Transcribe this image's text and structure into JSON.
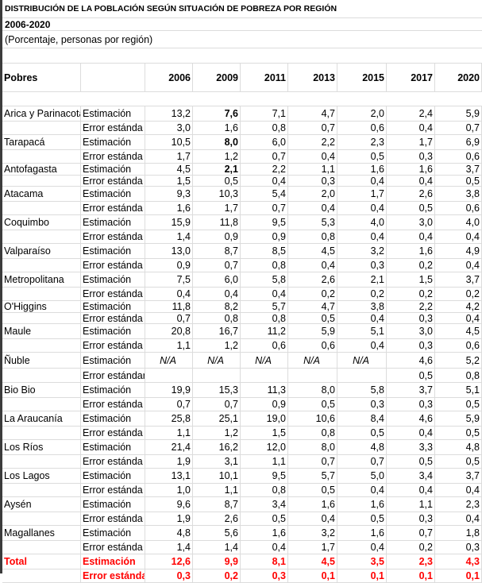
{
  "title": "DISTRIBUCIÓN DE LA POBLACIÓN SEGÚN SITUACIÓN DE POBREZA POR REGIÓN",
  "period": "2006-2020",
  "subtitle": "(Porcentaje, personas por región)",
  "header": {
    "label": "Pobres",
    "years": [
      "2006",
      "2009",
      "2011",
      "2013",
      "2015",
      "2017",
      "2020"
    ]
  },
  "estimate_label": "Estimación",
  "error_label": "Error estánda",
  "regions": [
    {
      "name": "Arica y Parinacota",
      "est": [
        "13,2",
        "7,6",
        "7,1",
        "4,7",
        "2,0",
        "2,4",
        "5,9"
      ],
      "err": [
        "3,0",
        "1,6",
        "0,8",
        "0,7",
        "0,6",
        "0,4",
        "0,7"
      ],
      "bold_cols": [
        1
      ]
    },
    {
      "name": "Tarapacá",
      "est": [
        "10,5",
        "8,0",
        "6,0",
        "2,2",
        "2,3",
        "1,7",
        "6,9"
      ],
      "err": [
        "1,7",
        "1,2",
        "0,7",
        "0,4",
        "0,5",
        "0,3",
        "0,6"
      ],
      "bold_cols": [
        1
      ]
    },
    {
      "name": "Antofagasta",
      "est": [
        "4,5",
        "2,1",
        "2,2",
        "1,1",
        "1,6",
        "1,6",
        "3,7"
      ],
      "err": [
        "1,5",
        "0,5",
        "0,4",
        "0,3",
        "0,4",
        "0,4",
        "0,5"
      ],
      "bold_cols": [
        1
      ],
      "tight": true
    },
    {
      "name": "Atacama",
      "est": [
        "9,3",
        "10,3",
        "5,4",
        "2,0",
        "1,7",
        "2,6",
        "3,8"
      ],
      "err": [
        "1,6",
        "1,7",
        "0,7",
        "0,4",
        "0,4",
        "0,5",
        "0,6"
      ]
    },
    {
      "name": "Coquimbo",
      "est": [
        "15,9",
        "11,8",
        "9,5",
        "5,3",
        "4,0",
        "3,0",
        "4,0"
      ],
      "err": [
        "1,4",
        "0,9",
        "0,9",
        "0,8",
        "0,4",
        "0,4",
        "0,4"
      ]
    },
    {
      "name": "Valparaíso",
      "est": [
        "13,0",
        "8,7",
        "8,5",
        "4,5",
        "3,2",
        "1,6",
        "4,9"
      ],
      "err": [
        "0,9",
        "0,7",
        "0,8",
        "0,4",
        "0,3",
        "0,2",
        "0,4"
      ]
    },
    {
      "name": "Metropolitana",
      "est": [
        "7,5",
        "6,0",
        "5,8",
        "2,6",
        "2,1",
        "1,5",
        "3,7"
      ],
      "err": [
        "0,4",
        "0,4",
        "0,4",
        "0,2",
        "0,2",
        "0,2",
        "0,2"
      ]
    },
    {
      "name": "O'Higgins",
      "est": [
        "11,8",
        "8,2",
        "5,7",
        "4,7",
        "3,8",
        "2,2",
        "4,2"
      ],
      "err": [
        "0,7",
        "0,8",
        "0,8",
        "0,5",
        "0,4",
        "0,3",
        "0,4"
      ],
      "tight": true
    },
    {
      "name": "Maule",
      "est": [
        "20,8",
        "16,7",
        "11,2",
        "5,9",
        "5,1",
        "3,0",
        "4,5"
      ],
      "err": [
        "1,1",
        "1,2",
        "0,6",
        "0,6",
        "0,4",
        "0,3",
        "0,6"
      ]
    },
    {
      "name": "Ñuble",
      "est": [
        "N/A",
        "N/A",
        "N/A",
        "N/A",
        "N/A",
        "4,6",
        "5,2"
      ],
      "err": [
        "",
        "",
        "",
        "",
        "",
        "0,5",
        "0,8"
      ],
      "italic_cols": [
        0,
        1,
        2,
        3,
        4
      ],
      "error_label": "Error estándar",
      "tall": true
    },
    {
      "name": "Bio Bio",
      "est": [
        "19,9",
        "15,3",
        "11,3",
        "8,0",
        "5,8",
        "3,7",
        "5,1"
      ],
      "err": [
        "0,7",
        "0,7",
        "0,9",
        "0,5",
        "0,3",
        "0,3",
        "0,5"
      ]
    },
    {
      "name": "La Araucanía",
      "est": [
        "25,8",
        "25,1",
        "19,0",
        "10,6",
        "8,4",
        "4,6",
        "5,9"
      ],
      "err": [
        "1,1",
        "1,2",
        "1,5",
        "0,8",
        "0,5",
        "0,4",
        "0,5"
      ]
    },
    {
      "name": "Los Ríos",
      "est": [
        "21,4",
        "16,2",
        "12,0",
        "8,0",
        "4,8",
        "3,3",
        "4,8"
      ],
      "err": [
        "1,9",
        "3,1",
        "1,1",
        "0,7",
        "0,7",
        "0,5",
        "0,5"
      ]
    },
    {
      "name": "Los Lagos",
      "est": [
        "13,1",
        "10,1",
        "9,5",
        "5,7",
        "5,0",
        "3,4",
        "3,7"
      ],
      "err": [
        "1,0",
        "1,1",
        "0,8",
        "0,5",
        "0,4",
        "0,4",
        "0,4"
      ]
    },
    {
      "name": "Aysén",
      "est": [
        "9,6",
        "8,7",
        "3,4",
        "1,6",
        "1,6",
        "1,1",
        "2,3"
      ],
      "err": [
        "1,9",
        "2,6",
        "0,5",
        "0,4",
        "0,5",
        "0,3",
        "0,4"
      ]
    },
    {
      "name": "Magallanes",
      "est": [
        "4,8",
        "5,6",
        "1,6",
        "3,2",
        "1,6",
        "0,7",
        "1,8"
      ],
      "err": [
        "1,4",
        "1,4",
        "0,4",
        "1,7",
        "0,4",
        "0,2",
        "0,3"
      ]
    },
    {
      "name": "Total",
      "est": [
        "12,6",
        "9,9",
        "8,1",
        "4,5",
        "3,5",
        "2,3",
        "4,3"
      ],
      "err": [
        "0,3",
        "0,2",
        "0,3",
        "0,1",
        "0,1",
        "0,1",
        "0,1"
      ],
      "total": true
    }
  ]
}
